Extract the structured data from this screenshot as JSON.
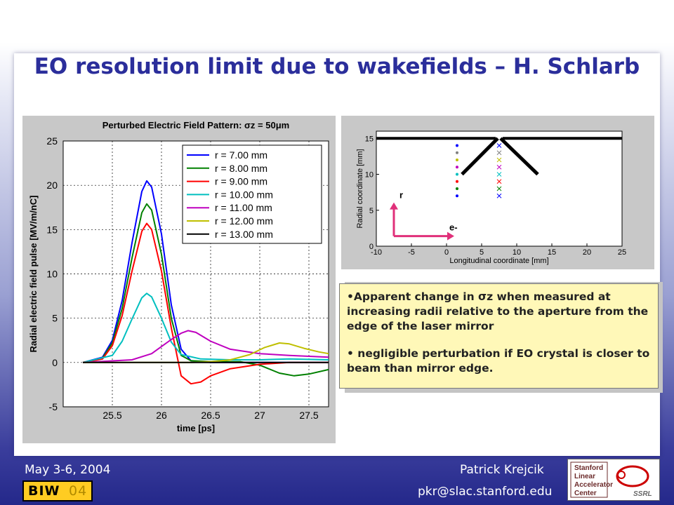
{
  "slide": {
    "title": "EO resolution limit due to wakefields – H. Schlarb",
    "bullets": [
      "•Apparent change in σz when measured at increasing radii relative to the aperture from the edge of the laser mirror",
      "• negligible perturbation if EO crystal is closer to beam than mirror edge."
    ]
  },
  "footer": {
    "date": "May 3-6, 2004",
    "author": "Patrick Krejcik",
    "email": "pkr@slac.stanford.edu",
    "biw_logo_text": "BIW",
    "biw_logo_year": "04",
    "slac_logo_lines": [
      "Stanford",
      "Linear",
      "Accelerator",
      "Center"
    ],
    "ssrl_text": "SSRL"
  },
  "colors": {
    "title": "#2b2e9b",
    "callout_bg": "#fff8b8",
    "slide_gradient_bottom": "#24288a"
  },
  "chart_data": [
    {
      "type": "line",
      "title": "Perturbed Electric Field Pattern: σz = 50μm",
      "xlabel": "time [ps]",
      "ylabel": "Radial electric field pulse [MV/m/nC]",
      "xlim": [
        25.0,
        27.7
      ],
      "ylim": [
        -5,
        25
      ],
      "xticks": [
        25.5,
        26,
        26.5,
        27,
        27.5
      ],
      "yticks": [
        -5,
        0,
        5,
        10,
        15,
        20,
        25
      ],
      "grid": true,
      "legend_position": "top-right",
      "series": [
        {
          "name": "r = 7.00 mm",
          "color": "#0000ff",
          "x": [
            25.2,
            25.4,
            25.5,
            25.6,
            25.7,
            25.8,
            25.85,
            25.9,
            26.0,
            26.1,
            26.2,
            26.3,
            26.5,
            27.0,
            27.7
          ],
          "y": [
            0,
            0.6,
            2.5,
            7,
            13.5,
            19.3,
            20.5,
            19.8,
            14.5,
            6.5,
            1.5,
            0.2,
            0,
            0,
            0
          ]
        },
        {
          "name": "r = 8.00 mm",
          "color": "#008000",
          "x": [
            25.2,
            25.4,
            25.5,
            25.6,
            25.7,
            25.8,
            25.85,
            25.9,
            26.0,
            26.1,
            26.2,
            26.3,
            26.5,
            26.8,
            27.0,
            27.2,
            27.35,
            27.5,
            27.7
          ],
          "y": [
            0,
            0.5,
            2.2,
            6.1,
            11.8,
            16.9,
            17.9,
            17.2,
            12.2,
            5.0,
            0.8,
            0.2,
            0.1,
            0.1,
            -0.3,
            -1.2,
            -1.5,
            -1.3,
            -0.8
          ]
        },
        {
          "name": "r = 9.00 mm",
          "color": "#ff0000",
          "x": [
            25.2,
            25.4,
            25.5,
            25.6,
            25.7,
            25.8,
            25.85,
            25.9,
            26.0,
            26.1,
            26.2,
            26.3,
            26.4,
            26.5,
            26.7,
            27.0,
            27.3,
            27.7
          ],
          "y": [
            0,
            0.4,
            1.9,
            5.3,
            10.3,
            14.8,
            15.7,
            15.0,
            10.3,
            3.9,
            -1.5,
            -2.4,
            -2.2,
            -1.5,
            -0.7,
            -0.2,
            0,
            0
          ]
        },
        {
          "name": "r = 10.00 mm",
          "color": "#00bfbf",
          "x": [
            25.2,
            25.5,
            25.6,
            25.7,
            25.8,
            25.85,
            25.9,
            26.0,
            26.1,
            26.2,
            26.4,
            26.7,
            27.0,
            27.3,
            27.7
          ],
          "y": [
            0,
            0.8,
            2.4,
            4.9,
            7.3,
            7.8,
            7.4,
            5.0,
            2.3,
            0.9,
            0.4,
            0.3,
            0.3,
            0.4,
            0.3
          ]
        },
        {
          "name": "r = 11.00 mm",
          "color": "#bf00bf",
          "x": [
            25.2,
            25.7,
            25.9,
            26.0,
            26.1,
            26.2,
            26.27,
            26.35,
            26.5,
            26.7,
            27.0,
            27.3,
            27.7
          ],
          "y": [
            0,
            0.3,
            1.0,
            1.8,
            2.6,
            3.3,
            3.6,
            3.4,
            2.4,
            1.5,
            1.0,
            0.8,
            0.6
          ]
        },
        {
          "name": "r = 12.00 mm",
          "color": "#bfbf00",
          "x": [
            25.2,
            26.3,
            26.5,
            26.7,
            26.9,
            27.05,
            27.2,
            27.3,
            27.45,
            27.6,
            27.7
          ],
          "y": [
            0,
            0,
            0.1,
            0.3,
            0.9,
            1.7,
            2.2,
            2.1,
            1.6,
            1.2,
            1.0
          ]
        },
        {
          "name": "r = 13.00 mm",
          "color": "#000000",
          "x": [
            25.2,
            27.7
          ],
          "y": [
            0,
            0
          ]
        }
      ]
    },
    {
      "type": "scatter",
      "xlabel": "Longitudinal coordinate [mm]",
      "ylabel": "Radial coordinate [mm]",
      "xlim": [
        -10,
        25
      ],
      "ylim": [
        0,
        16
      ],
      "xticks": [
        -10,
        -5,
        0,
        5,
        10,
        15,
        20,
        25
      ],
      "yticks": [
        0,
        5,
        10,
        15
      ],
      "annotations": [
        "r",
        "e-"
      ],
      "dots_x": 1.5,
      "crosses_x": 7.5,
      "marker_y": [
        7,
        8,
        9,
        10,
        11,
        12,
        13,
        14
      ],
      "marker_colors": [
        "#0000ff",
        "#008000",
        "#ff0000",
        "#00bfbf",
        "#bf00bf",
        "#bfbf00",
        "#7f7f7f",
        "#0000ff"
      ]
    }
  ]
}
